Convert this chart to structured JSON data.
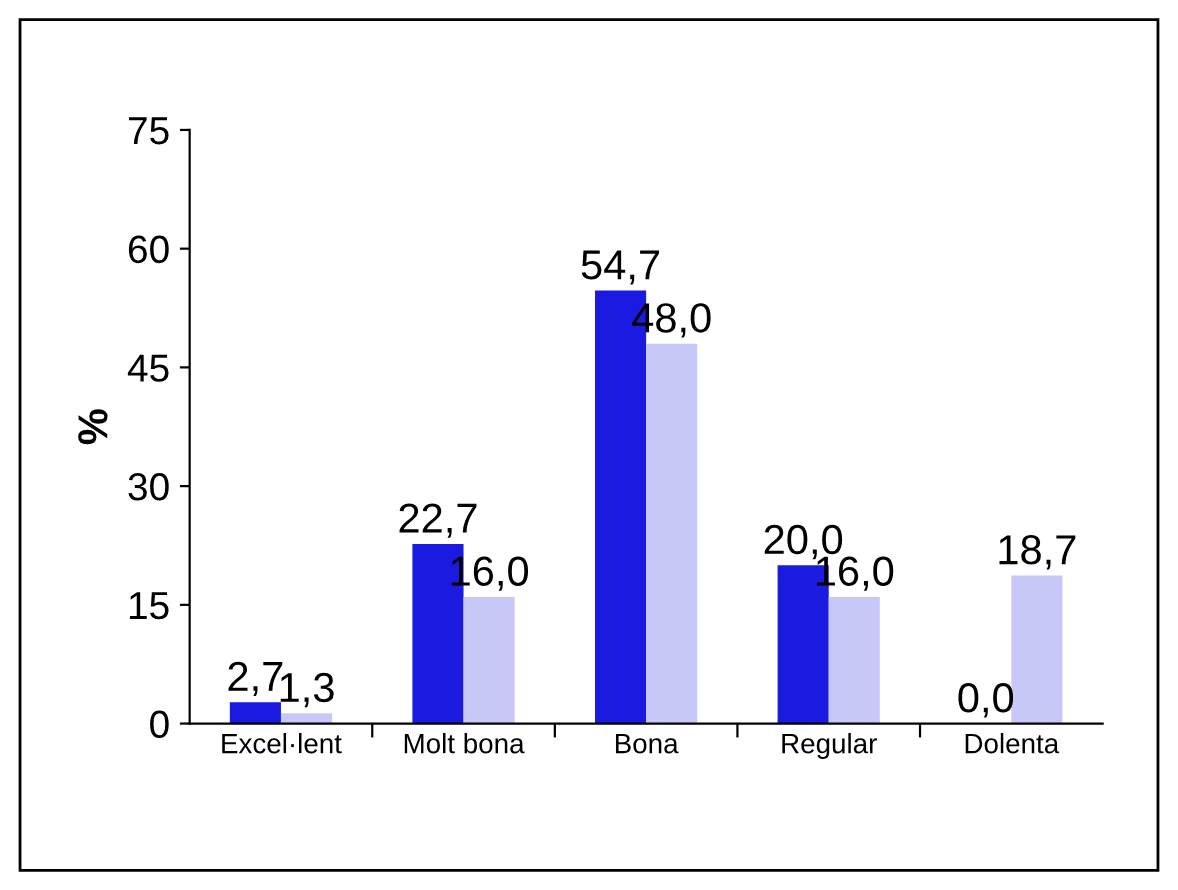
{
  "chart_data": {
    "type": "bar",
    "ylabel": "%",
    "categories": [
      "Excel·lent",
      "Molt bona",
      "Bona",
      "Regular",
      "Dolenta"
    ],
    "series": [
      {
        "color": "#1a1ae0",
        "values": [
          2.7,
          22.7,
          54.7,
          20.0,
          0.0
        ],
        "value_labels": [
          "2,7",
          "22,7",
          "54,7",
          "20,0",
          "0,0"
        ]
      },
      {
        "color": "#c8c8f8",
        "values": [
          1.3,
          16.0,
          48.0,
          16.0,
          18.7
        ],
        "value_labels": [
          "1,3",
          "16,0",
          "48,0",
          "16,0",
          "18,7"
        ]
      }
    ],
    "ylim": [
      0,
      75
    ],
    "yticks": [
      0,
      15,
      30,
      45,
      60,
      75
    ],
    "grid": false,
    "legend": false
  }
}
